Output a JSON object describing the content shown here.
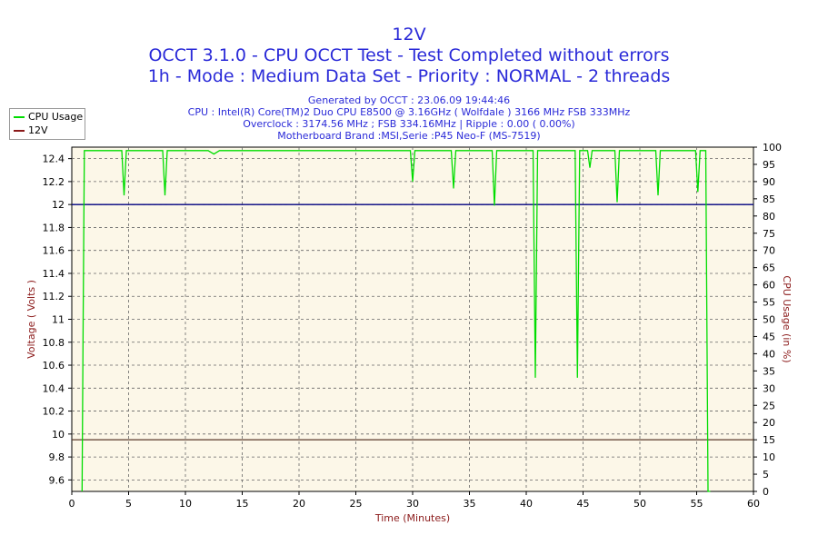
{
  "titles": {
    "main": "12V",
    "line2": "OCCT 3.1.0 - CPU OCCT Test - Test Completed without errors",
    "line3": "1h - Mode : Medium Data Set - Priority : NORMAL - 2 threads"
  },
  "info": {
    "generated": "Generated by OCCT : 23.06.09 19:44:46",
    "cpu": "CPU : Intel(R) Core(TM)2 Duo CPU E8500 @ 3.16GHz ( Wolfdale ) 3166 MHz FSB 333MHz",
    "overclock": "Overclock : 3174.56 MHz ; FSB 334.16MHz | Ripple : 0.00 ( 0.00%)",
    "motherboard": "Motherboard Brand :MSI,Serie :P45 Neo-F (MS-7519)"
  },
  "legend": [
    {
      "label": "CPU Usage",
      "color": "#00dd00"
    },
    {
      "label": "12V",
      "color": "#8b1a1a"
    }
  ],
  "chart_data": {
    "type": "line",
    "xlabel": "Time (Minutes)",
    "ylabel": "Voltage ( Volts )",
    "y2label": "CPU Usage (in %)",
    "xlim": [
      0,
      60
    ],
    "ylim": [
      9.5,
      12.5
    ],
    "y2lim": [
      0,
      100
    ],
    "xticks": [
      0,
      5,
      10,
      15,
      20,
      25,
      30,
      35,
      40,
      45,
      50,
      55,
      60
    ],
    "yticks": [
      9.6,
      9.8,
      10,
      10.2,
      10.4,
      10.6,
      10.8,
      11,
      11.2,
      11.4,
      11.6,
      11.8,
      12,
      12.2,
      12.4
    ],
    "y2ticks": [
      0,
      5,
      10,
      15,
      20,
      25,
      30,
      35,
      40,
      45,
      50,
      55,
      60,
      65,
      70,
      75,
      80,
      85,
      90,
      95,
      100
    ],
    "grid": true,
    "colors": {
      "plot_bg": "#fcf7e8",
      "cpu": "#00dd00",
      "voltage": "#000080",
      "marker_line": "#5a3a2a"
    },
    "series": [
      {
        "name": "12V",
        "axis": "left",
        "x": [
          0,
          60
        ],
        "values": [
          12.0,
          12.0
        ]
      },
      {
        "name": "CPU Usage",
        "axis": "right",
        "x": [
          0.9,
          1.0,
          1.1,
          1.2,
          4.4,
          4.6,
          4.8,
          8.0,
          8.2,
          8.4,
          12.0,
          12.5,
          13.0,
          29.8,
          30.0,
          30.2,
          33.4,
          33.6,
          33.8,
          37.0,
          37.2,
          37.4,
          40.6,
          40.8,
          41.0,
          44.3,
          44.5,
          44.7,
          45.4,
          45.6,
          45.8,
          47.8,
          48.0,
          48.2,
          51.4,
          51.6,
          51.8,
          54.9,
          55.1,
          55.3,
          55.8,
          56.0,
          56.2
        ],
        "values": [
          0,
          50,
          99,
          99,
          99,
          86,
          99,
          99,
          86,
          99,
          99,
          98,
          99,
          99,
          90,
          99,
          99,
          88,
          99,
          99,
          83,
          99,
          99,
          33,
          99,
          99,
          33,
          99,
          99,
          94,
          99,
          99,
          84,
          99,
          99,
          86,
          99,
          99,
          87,
          99,
          99,
          0,
          0
        ]
      }
    ],
    "reference_lines": [
      {
        "axis": "right",
        "value": 15
      }
    ]
  }
}
